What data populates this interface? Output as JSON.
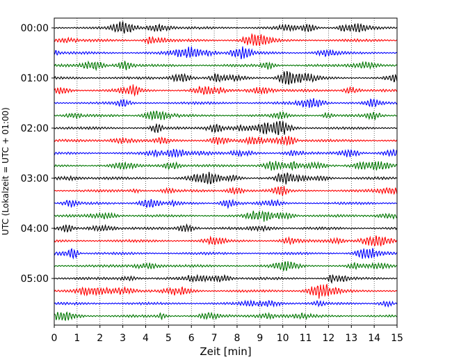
{
  "chart_data": {
    "type": "line",
    "title": "",
    "xlabel": "Zeit  [min]",
    "ylabel": "UTC (Lokalzeit = UTC + 01:00)",
    "xlim": [
      0,
      15
    ],
    "x_ticks": [
      0,
      1,
      2,
      3,
      4,
      5,
      6,
      7,
      8,
      9,
      10,
      11,
      12,
      13,
      14,
      15
    ],
    "y_ticks": [
      "00:00",
      "01:00",
      "02:00",
      "03:00",
      "04:00",
      "05:00"
    ],
    "grid": "vertical dotted",
    "trace_interval_min": 15,
    "trace_count": 24,
    "trace_colors": [
      "#000000",
      "#ff0000",
      "#0000ff",
      "#007700"
    ]
  }
}
